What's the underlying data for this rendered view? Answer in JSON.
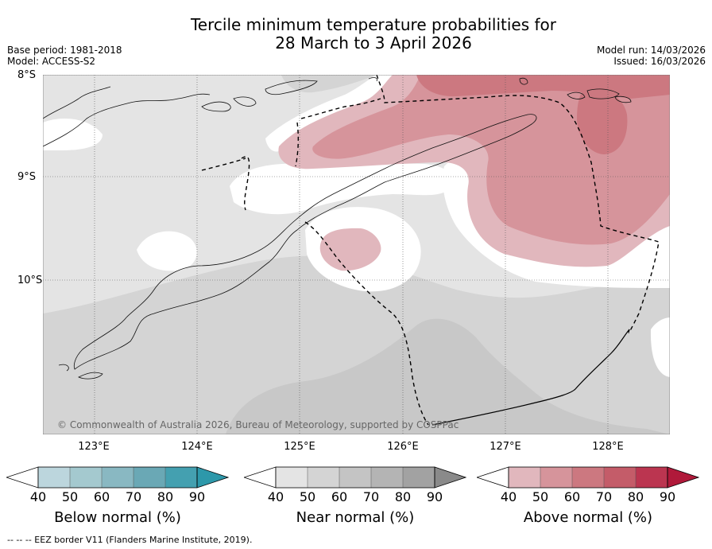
{
  "title": {
    "line1": "Tercile minimum temperature probabilities for",
    "line2": "28 March to 3 April 2026"
  },
  "meta_left": {
    "base_period": "Base period: 1981-2018",
    "model": "Model: ACCESS-S2"
  },
  "meta_right": {
    "model_run": "Model run: 14/03/2026",
    "issued": "Issued: 16/03/2026"
  },
  "map": {
    "lat_labels": [
      "8°S",
      "9°S",
      "10°S"
    ],
    "lon_labels": [
      "123°E",
      "124°E",
      "125°E",
      "126°E",
      "127°E",
      "128°E"
    ],
    "copyright": "© Commonwealth of Australia 2026, Bureau of Meteorology, supported by COSPPac"
  },
  "colorbars": [
    {
      "name": "below",
      "label": "Below normal (%)",
      "ticks": [
        "40",
        "50",
        "60",
        "70",
        "80",
        "90"
      ],
      "colors": [
        "#ffffff",
        "#bcd6dd",
        "#a4c9cf",
        "#89b8c2",
        "#6aa8b5",
        "#44a0b0",
        "#2d98aa"
      ]
    },
    {
      "name": "near",
      "label": "Near normal (%)",
      "ticks": [
        "40",
        "50",
        "60",
        "70",
        "80",
        "90"
      ],
      "colors": [
        "#ffffff",
        "#e4e4e4",
        "#d4d4d4",
        "#c4c4c4",
        "#b4b4b4",
        "#a2a2a2",
        "#8a8a8a"
      ]
    },
    {
      "name": "above",
      "label": "Above normal (%)",
      "ticks": [
        "40",
        "50",
        "60",
        "70",
        "80",
        "90"
      ],
      "colors": [
        "#ffffff",
        "#e1b7bd",
        "#d6949b",
        "#cc7880",
        "#c45c69",
        "#bb3550",
        "#b0193a"
      ]
    }
  ],
  "footnote": "--  --  -- EEZ border V11 (Flanders Marine Institute, 2019)."
}
